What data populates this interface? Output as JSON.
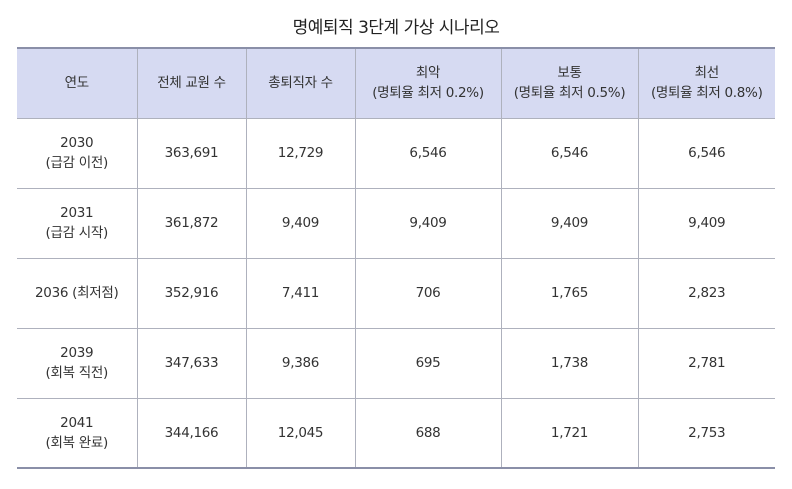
{
  "title": "명예퇴직 3단계 가상 시나리오",
  "headers": [
    {
      "line1": "연도",
      "line2": ""
    },
    {
      "line1": "전체 교원 수",
      "line2": ""
    },
    {
      "line1": "총퇴직자 수",
      "line2": ""
    },
    {
      "line1": "최악",
      "line2": "(명퇴율 최저 0.2%)"
    },
    {
      "line1": "보통",
      "line2": "(명퇴율 최저 0.5%)"
    },
    {
      "line1": "최선",
      "line2": "(명퇴율 최저 0.8%)"
    }
  ],
  "rows": [
    {
      "year1": "2030",
      "year2": "(급감 이전)",
      "total": "363,691",
      "retirees": "12,729",
      "worst": "6,546",
      "normal": "6,546",
      "best": "6,546"
    },
    {
      "year1": "2031",
      "year2": "(급감 시작)",
      "total": "361,872",
      "retirees": "9,409",
      "worst": "9,409",
      "normal": "9,409",
      "best": "9,409"
    },
    {
      "year1": "2036 (최저점)",
      "year2": "",
      "total": "352,916",
      "retirees": "7,411",
      "worst": "706",
      "normal": "1,765",
      "best": "2,823"
    },
    {
      "year1": "2039",
      "year2": "(회복 직전)",
      "total": "347,633",
      "retirees": "9,386",
      "worst": "695",
      "normal": "1,738",
      "best": "2,781"
    },
    {
      "year1": "2041",
      "year2": "(회복 완료)",
      "total": "344,166",
      "retirees": "12,045",
      "worst": "688",
      "normal": "1,721",
      "best": "2,753"
    }
  ]
}
